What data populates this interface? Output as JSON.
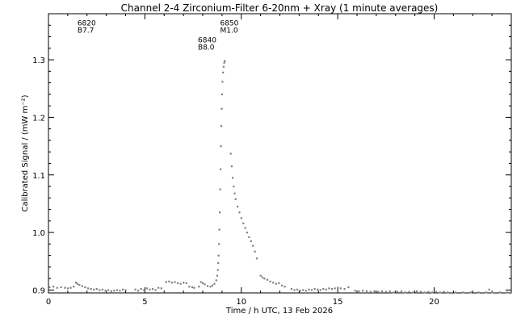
{
  "chart_data": {
    "type": "scatter",
    "title": "Channel 2-4   Zirconium-Filter   6-20nm + Xray   (1 minute averages)",
    "xlabel": "Time / h UTC, 13 Feb 2026",
    "ylabel": "Calibrated Signal / (mW m⁻²)",
    "xlim": [
      0,
      24
    ],
    "ylim": [
      0.895,
      1.38
    ],
    "xticks": [
      0,
      5,
      10,
      15,
      20
    ],
    "xtick_labels": [
      "0",
      "5",
      "10",
      "15",
      "20"
    ],
    "yticks": [
      0.9,
      1.0,
      1.1,
      1.2,
      1.3
    ],
    "ytick_labels": [
      "0.9",
      "1.0",
      "1.1",
      "1.2",
      "1.3"
    ],
    "grid": false,
    "marker_color": "#808080",
    "annotations": [
      {
        "x": 1.5,
        "y": 1.36,
        "lines": [
          "6820",
          "B7.7"
        ]
      },
      {
        "x": 8.9,
        "y": 1.36,
        "lines": [
          "6850",
          "M1.0"
        ]
      },
      {
        "x": 7.75,
        "y": 1.33,
        "lines": [
          "6840",
          "B8.0"
        ]
      }
    ],
    "series": [
      {
        "points": [
          [
            0.05,
            0.905
          ],
          [
            0.25,
            0.906
          ],
          [
            0.45,
            0.904
          ],
          [
            0.65,
            0.905
          ],
          [
            0.85,
            0.904
          ],
          [
            1.0,
            0.903
          ],
          [
            1.15,
            0.904
          ],
          [
            1.3,
            0.906
          ],
          [
            1.42,
            0.913
          ],
          [
            1.5,
            0.911
          ],
          [
            1.6,
            0.909
          ],
          [
            1.75,
            0.907
          ],
          [
            1.9,
            0.905
          ],
          [
            2.05,
            0.903
          ],
          [
            2.2,
            0.902
          ],
          [
            2.35,
            0.901
          ],
          [
            2.5,
            0.902
          ],
          [
            2.65,
            0.9
          ],
          [
            2.8,
            0.901
          ],
          [
            2.95,
            0.899
          ],
          [
            3.1,
            0.9
          ],
          [
            3.25,
            0.898
          ],
          [
            3.4,
            0.899
          ],
          [
            3.55,
            0.9
          ],
          [
            3.7,
            0.899
          ],
          [
            3.85,
            0.901
          ],
          [
            4.0,
            0.9
          ],
          [
            4.5,
            0.901
          ],
          [
            4.65,
            0.899
          ],
          [
            4.8,
            0.902
          ],
          [
            4.95,
            0.9
          ],
          [
            5.1,
            0.903
          ],
          [
            5.25,
            0.901
          ],
          [
            5.4,
            0.902
          ],
          [
            5.55,
            0.9
          ],
          [
            5.7,
            0.904
          ],
          [
            5.85,
            0.903
          ],
          [
            6.1,
            0.914
          ],
          [
            6.25,
            0.915
          ],
          [
            6.4,
            0.913
          ],
          [
            6.55,
            0.914
          ],
          [
            6.7,
            0.912
          ],
          [
            6.85,
            0.911
          ],
          [
            7.0,
            0.913
          ],
          [
            7.15,
            0.912
          ],
          [
            7.3,
            0.906
          ],
          [
            7.45,
            0.905
          ],
          [
            7.55,
            0.904
          ],
          [
            7.8,
            0.906
          ],
          [
            7.9,
            0.914
          ],
          [
            8.0,
            0.912
          ],
          [
            8.1,
            0.91
          ],
          [
            8.25,
            0.907
          ],
          [
            8.4,
            0.906
          ],
          [
            8.5,
            0.908
          ],
          [
            8.6,
            0.911
          ],
          [
            8.7,
            0.917
          ],
          [
            8.75,
            0.925
          ],
          [
            8.78,
            0.935
          ],
          [
            8.8,
            0.947
          ],
          [
            8.82,
            0.96
          ],
          [
            8.84,
            0.98
          ],
          [
            8.86,
            1.005
          ],
          [
            8.88,
            1.035
          ],
          [
            8.9,
            1.075
          ],
          [
            8.92,
            1.11
          ],
          [
            8.94,
            1.15
          ],
          [
            8.96,
            1.185
          ],
          [
            8.98,
            1.215
          ],
          [
            9.0,
            1.24
          ],
          [
            9.02,
            1.262
          ],
          [
            9.05,
            1.278
          ],
          [
            9.08,
            1.288
          ],
          [
            9.11,
            1.295
          ],
          [
            9.14,
            1.298
          ],
          [
            9.45,
            1.137
          ],
          [
            9.5,
            1.115
          ],
          [
            9.55,
            1.095
          ],
          [
            9.6,
            1.08
          ],
          [
            9.65,
            1.068
          ],
          [
            9.7,
            1.058
          ],
          [
            9.8,
            1.045
          ],
          [
            9.9,
            1.035
          ],
          [
            10.0,
            1.025
          ],
          [
            10.1,
            1.016
          ],
          [
            10.2,
            1.008
          ],
          [
            10.3,
            1.0
          ],
          [
            10.4,
            0.992
          ],
          [
            10.5,
            0.985
          ],
          [
            10.6,
            0.977
          ],
          [
            10.7,
            0.967
          ],
          [
            10.8,
            0.955
          ],
          [
            11.0,
            0.925
          ],
          [
            11.1,
            0.922
          ],
          [
            11.2,
            0.92
          ],
          [
            11.35,
            0.918
          ],
          [
            11.5,
            0.915
          ],
          [
            11.65,
            0.913
          ],
          [
            11.8,
            0.911
          ],
          [
            11.95,
            0.912
          ],
          [
            12.1,
            0.908
          ],
          [
            12.25,
            0.906
          ],
          [
            12.6,
            0.902
          ],
          [
            12.75,
            0.9
          ],
          [
            12.9,
            0.901
          ],
          [
            13.05,
            0.899
          ],
          [
            13.2,
            0.9
          ],
          [
            13.35,
            0.899
          ],
          [
            13.5,
            0.901
          ],
          [
            13.65,
            0.9
          ],
          [
            13.8,
            0.902
          ],
          [
            13.95,
            0.901
          ],
          [
            14.1,
            0.9
          ],
          [
            14.25,
            0.902
          ],
          [
            14.4,
            0.901
          ],
          [
            14.55,
            0.903
          ],
          [
            14.7,
            0.902
          ],
          [
            14.85,
            0.903
          ],
          [
            15.0,
            0.904
          ],
          [
            15.15,
            0.903
          ],
          [
            15.35,
            0.902
          ],
          [
            15.55,
            0.905
          ],
          [
            15.9,
            0.899
          ],
          [
            16.1,
            0.898
          ],
          [
            16.3,
            0.899
          ],
          [
            16.5,
            0.898
          ],
          [
            16.7,
            0.897
          ],
          [
            16.9,
            0.898
          ],
          [
            17.1,
            0.897
          ],
          [
            17.3,
            0.898
          ],
          [
            17.5,
            0.897
          ],
          [
            17.7,
            0.898
          ],
          [
            17.9,
            0.896
          ],
          [
            18.1,
            0.897
          ],
          [
            18.3,
            0.898
          ],
          [
            18.5,
            0.896
          ],
          [
            18.7,
            0.897
          ],
          [
            18.9,
            0.896
          ],
          [
            19.1,
            0.898
          ],
          [
            19.3,
            0.897
          ],
          [
            19.5,
            0.896
          ],
          [
            19.7,
            0.897
          ],
          [
            19.9,
            0.896
          ],
          [
            20.1,
            0.897
          ],
          [
            20.3,
            0.896
          ],
          [
            20.5,
            0.897
          ],
          [
            20.7,
            0.896
          ],
          [
            20.9,
            0.895
          ],
          [
            21.1,
            0.896
          ],
          [
            21.3,
            0.895
          ],
          [
            21.5,
            0.896
          ],
          [
            21.7,
            0.895
          ],
          [
            21.9,
            0.896
          ],
          [
            22.1,
            0.895
          ],
          [
            22.3,
            0.896
          ],
          [
            22.5,
            0.895
          ],
          [
            22.7,
            0.896
          ],
          [
            22.85,
            0.901
          ],
          [
            23.0,
            0.896
          ],
          [
            23.2,
            0.895
          ],
          [
            23.4,
            0.896
          ],
          [
            23.6,
            0.895
          ],
          [
            23.8,
            0.896
          ],
          [
            23.95,
            0.895
          ]
        ]
      }
    ]
  }
}
